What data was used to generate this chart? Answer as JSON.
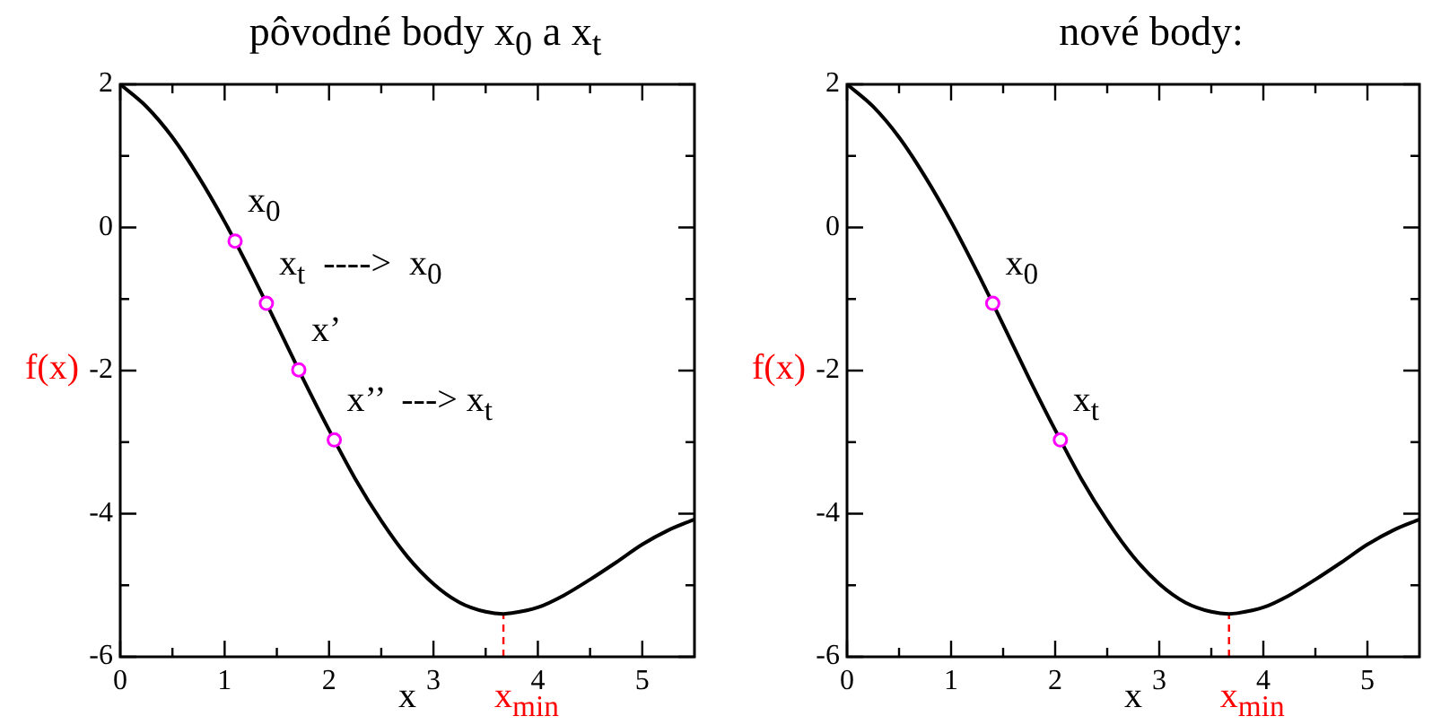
{
  "chart_data": [
    {
      "type": "line",
      "title": "pôvodné body x$_{0}$ a x$_{t}$",
      "xlabel": "x",
      "ylabel": "f(x)",
      "xlim": [
        0,
        5.5
      ],
      "ylim": [
        -6,
        2
      ],
      "xticks": [
        0,
        {
          "value": 0.5,
          "label": null
        },
        1,
        {
          "value": 1.5,
          "label": null
        },
        2,
        {
          "value": 2.5,
          "label": null
        },
        3,
        {
          "value": 3.5,
          "label": null
        },
        4,
        {
          "value": 4.5,
          "label": null
        },
        5
      ],
      "yticks": [
        -6,
        {
          "value": -5,
          "label": null
        },
        -4,
        {
          "value": -3,
          "label": null
        },
        -2,
        {
          "value": -1,
          "label": null
        },
        0,
        {
          "value": 1,
          "label": null
        },
        2
      ],
      "series": [
        {
          "type": "line",
          "color": "#000000",
          "x": [
            0,
            0.25,
            0.5,
            0.75,
            1,
            1.25,
            1.5,
            1.75,
            2,
            2.25,
            2.5,
            2.75,
            3,
            3.25,
            3.5,
            3.67,
            3.75,
            4,
            4.25,
            4.5,
            4.75,
            5,
            5.25,
            5.5
          ],
          "values": [
            2,
            1.69,
            1.26,
            0.71,
            0.08,
            -0.62,
            -1.36,
            -2.11,
            -2.83,
            -3.51,
            -4.1,
            -4.6,
            -4.98,
            -5.24,
            -5.37,
            -5.4,
            -5.39,
            -5.31,
            -5.14,
            -4.92,
            -4.68,
            -4.43,
            -4.23,
            -4.08
          ]
        },
        {
          "type": "scatter",
          "color": "#ff00ff",
          "marker": "circle",
          "x": [
            1.1,
            1.4,
            1.71,
            2.05
          ],
          "values": [
            -0.19,
            -1.06,
            -1.99,
            -2.97
          ]
        }
      ],
      "ref_lines": [
        {
          "axis": "x",
          "value": 3.67,
          "label": "x$_{min}$",
          "color": "#ff0000",
          "line_style": "dashed"
        }
      ],
      "annotations": [
        {
          "text": "x$_{0}$",
          "x": 1.1,
          "y": -0.19
        },
        {
          "text": "x$_{t}$  ---->  x$_{0}$",
          "x": 1.4,
          "y": -1.06
        },
        {
          "text": "x’",
          "x": 1.71,
          "y": -1.99
        },
        {
          "text": "x’’  ---> x$_{t}$",
          "x": 2.05,
          "y": -2.97
        }
      ]
    },
    {
      "type": "line",
      "title": "nové body:",
      "xlabel": "x",
      "ylabel": "f(x)",
      "xlim": [
        0,
        5.5
      ],
      "ylim": [
        -6,
        2
      ],
      "xticks": [
        0,
        {
          "value": 0.5,
          "label": null
        },
        1,
        {
          "value": 1.5,
          "label": null
        },
        2,
        {
          "value": 2.5,
          "label": null
        },
        3,
        {
          "value": 3.5,
          "label": null
        },
        4,
        {
          "value": 4.5,
          "label": null
        },
        5
      ],
      "yticks": [
        -6,
        {
          "value": -5,
          "label": null
        },
        -4,
        {
          "value": -3,
          "label": null
        },
        -2,
        {
          "value": -1,
          "label": null
        },
        0,
        {
          "value": 1,
          "label": null
        },
        2
      ],
      "series": [
        {
          "type": "line",
          "color": "#000000",
          "x": [
            0,
            0.25,
            0.5,
            0.75,
            1,
            1.25,
            1.5,
            1.75,
            2,
            2.25,
            2.5,
            2.75,
            3,
            3.25,
            3.5,
            3.67,
            3.75,
            4,
            4.25,
            4.5,
            4.75,
            5,
            5.25,
            5.5
          ],
          "values": [
            2,
            1.69,
            1.26,
            0.71,
            0.08,
            -0.62,
            -1.36,
            -2.11,
            -2.83,
            -3.51,
            -4.1,
            -4.6,
            -4.98,
            -5.24,
            -5.37,
            -5.4,
            -5.39,
            -5.31,
            -5.14,
            -4.92,
            -4.68,
            -4.43,
            -4.23,
            -4.08
          ]
        },
        {
          "type": "scatter",
          "color": "#ff00ff",
          "marker": "circle",
          "x": [
            1.4,
            2.05
          ],
          "values": [
            -1.06,
            -2.97
          ]
        }
      ],
      "ref_lines": [
        {
          "axis": "x",
          "value": 3.67,
          "label": "x$_{min}$",
          "color": "#ff0000",
          "line_style": "dashed"
        }
      ],
      "annotations": [
        {
          "text": "x$_{0}$",
          "x": 1.4,
          "y": -1.06
        },
        {
          "text": "x$_{t}$",
          "x": 2.05,
          "y": -2.97
        }
      ]
    }
  ]
}
